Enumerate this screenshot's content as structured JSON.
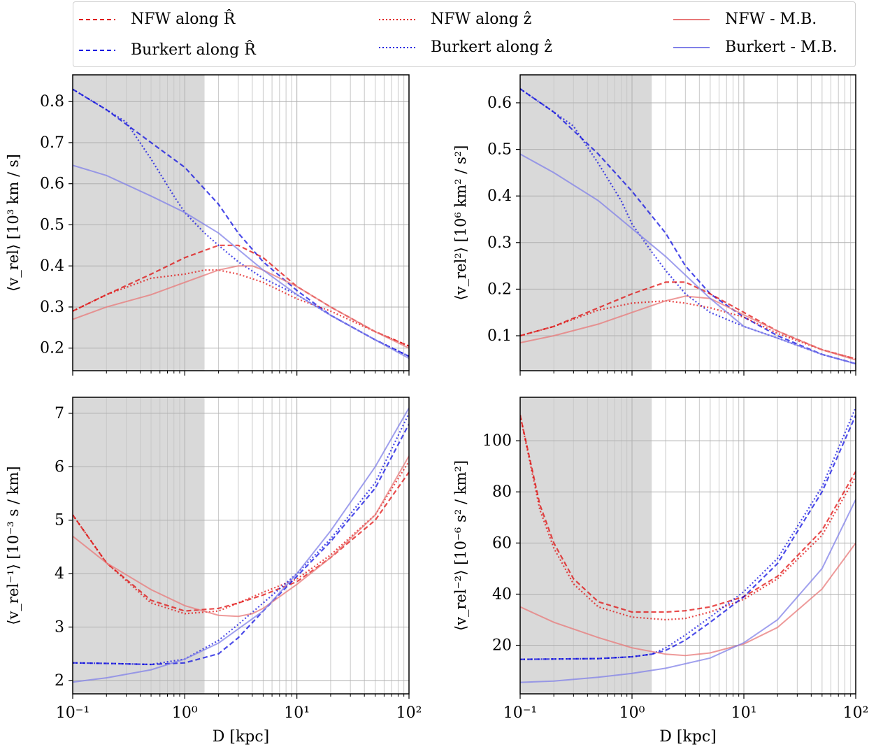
{
  "legend": {
    "items": [
      {
        "label": "NFW along R̂",
        "color": "#e00000",
        "style": "dashed",
        "opacity": 1
      },
      {
        "label": "Burkert along R̂",
        "color": "#0000e0",
        "style": "dashed",
        "opacity": 1
      },
      {
        "label": "NFW along ẑ",
        "color": "#e00000",
        "style": "dotted",
        "opacity": 1
      },
      {
        "label": "Burkert along ẑ",
        "color": "#0000e0",
        "style": "dotted",
        "opacity": 1
      },
      {
        "label": "NFW - M.B.",
        "color": "#e87878",
        "style": "solid",
        "opacity": 1
      },
      {
        "label": "Burkert - M.B.",
        "color": "#8080e8",
        "style": "solid",
        "opacity": 1
      }
    ]
  },
  "chart_data": [
    {
      "type": "line",
      "ylabel": "⟨v_rel⟩ [10³ km / s]",
      "xlabel": "",
      "xscale": "log",
      "xlim": [
        0.1,
        100
      ],
      "ylim": [
        0.145,
        0.865
      ],
      "yticks": [
        0.2,
        0.3,
        0.4,
        0.5,
        0.6,
        0.7,
        0.8
      ],
      "ytick_labels": [
        "0.2",
        "0.3",
        "0.4",
        "0.5",
        "0.6",
        "0.7",
        "0.8"
      ],
      "shaded_region": [
        0.1,
        1.5
      ],
      "grid": true,
      "series": [
        {
          "name": "Burkert along R̂",
          "color": "#0000e0",
          "style": "dashed",
          "x": [
            0.1,
            0.2,
            0.5,
            1,
            2,
            3,
            5,
            10,
            20,
            50,
            100
          ],
          "y": [
            0.83,
            0.78,
            0.7,
            0.64,
            0.55,
            0.48,
            0.41,
            0.34,
            0.28,
            0.22,
            0.18
          ]
        },
        {
          "name": "Burkert along ẑ",
          "color": "#0000e0",
          "style": "dotted",
          "x": [
            0.1,
            0.2,
            0.3,
            0.5,
            0.8,
            1,
            1.5,
            2,
            3,
            5,
            10,
            20,
            50,
            100
          ],
          "y": [
            0.83,
            0.78,
            0.75,
            0.66,
            0.57,
            0.53,
            0.48,
            0.45,
            0.41,
            0.37,
            0.33,
            0.28,
            0.22,
            0.18
          ]
        },
        {
          "name": "NFW along R̂",
          "color": "#e00000",
          "style": "dashed",
          "x": [
            0.1,
            0.2,
            0.5,
            1,
            2,
            3,
            5,
            10,
            20,
            50,
            100
          ],
          "y": [
            0.29,
            0.33,
            0.38,
            0.42,
            0.45,
            0.45,
            0.42,
            0.35,
            0.3,
            0.24,
            0.205
          ]
        },
        {
          "name": "NFW along ẑ",
          "color": "#e00000",
          "style": "dotted",
          "x": [
            0.1,
            0.2,
            0.5,
            1,
            1.5,
            2,
            3,
            5,
            10,
            20,
            50,
            100
          ],
          "y": [
            0.29,
            0.33,
            0.37,
            0.38,
            0.39,
            0.39,
            0.38,
            0.36,
            0.32,
            0.29,
            0.24,
            0.205
          ]
        },
        {
          "name": "NFW - M.B.",
          "color": "#e87878",
          "style": "solid",
          "x": [
            0.1,
            0.2,
            0.5,
            1,
            2,
            3,
            4,
            5,
            10,
            20,
            50,
            100
          ],
          "y": [
            0.27,
            0.3,
            0.33,
            0.36,
            0.39,
            0.4,
            0.4,
            0.39,
            0.35,
            0.3,
            0.24,
            0.2
          ]
        },
        {
          "name": "Burkert - M.B.",
          "color": "#8080e8",
          "style": "solid",
          "x": [
            0.1,
            0.2,
            0.5,
            1,
            2,
            5,
            10,
            20,
            50,
            100
          ],
          "y": [
            0.645,
            0.62,
            0.57,
            0.53,
            0.48,
            0.39,
            0.33,
            0.28,
            0.22,
            0.175
          ]
        }
      ]
    },
    {
      "type": "line",
      "ylabel": "⟨v_rel²⟩ [10⁶ km² / s²]",
      "xlabel": "",
      "xscale": "log",
      "xlim": [
        0.1,
        100
      ],
      "ylim": [
        0.025,
        0.66
      ],
      "yticks": [
        0.1,
        0.2,
        0.3,
        0.4,
        0.5,
        0.6
      ],
      "ytick_labels": [
        "0.1",
        "0.2",
        "0.3",
        "0.4",
        "0.5",
        "0.6"
      ],
      "shaded_region": [
        0.1,
        1.5
      ],
      "grid": true,
      "series": [
        {
          "name": "Burkert along R̂",
          "color": "#0000e0",
          "style": "dashed",
          "x": [
            0.1,
            0.2,
            0.5,
            1,
            2,
            3,
            5,
            10,
            20,
            50,
            100
          ],
          "y": [
            0.63,
            0.58,
            0.49,
            0.41,
            0.32,
            0.25,
            0.19,
            0.14,
            0.1,
            0.06,
            0.04
          ]
        },
        {
          "name": "Burkert along ẑ",
          "color": "#0000e0",
          "style": "dotted",
          "x": [
            0.1,
            0.2,
            0.3,
            0.5,
            0.8,
            1,
            1.5,
            2,
            3,
            5,
            10,
            20,
            50,
            100
          ],
          "y": [
            0.63,
            0.58,
            0.55,
            0.47,
            0.39,
            0.34,
            0.28,
            0.24,
            0.19,
            0.15,
            0.12,
            0.095,
            0.06,
            0.04
          ]
        },
        {
          "name": "NFW along R̂",
          "color": "#e00000",
          "style": "dashed",
          "x": [
            0.1,
            0.2,
            0.5,
            1,
            2,
            3,
            5,
            10,
            20,
            50,
            100
          ],
          "y": [
            0.1,
            0.12,
            0.16,
            0.19,
            0.215,
            0.215,
            0.19,
            0.15,
            0.11,
            0.07,
            0.05
          ]
        },
        {
          "name": "NFW along ẑ",
          "color": "#e00000",
          "style": "dotted",
          "x": [
            0.1,
            0.2,
            0.5,
            1,
            2,
            3,
            5,
            10,
            20,
            50,
            100
          ],
          "y": [
            0.1,
            0.12,
            0.155,
            0.17,
            0.175,
            0.17,
            0.16,
            0.14,
            0.105,
            0.07,
            0.05
          ]
        },
        {
          "name": "NFW - M.B.",
          "color": "#e87878",
          "style": "solid",
          "x": [
            0.1,
            0.2,
            0.5,
            1,
            2,
            3,
            5,
            10,
            20,
            50,
            100
          ],
          "y": [
            0.085,
            0.1,
            0.125,
            0.15,
            0.175,
            0.185,
            0.18,
            0.145,
            0.11,
            0.07,
            0.048
          ]
        },
        {
          "name": "Burkert - M.B.",
          "color": "#8080e8",
          "style": "solid",
          "x": [
            0.1,
            0.2,
            0.5,
            1,
            2,
            5,
            10,
            20,
            50,
            100
          ],
          "y": [
            0.49,
            0.45,
            0.39,
            0.33,
            0.27,
            0.18,
            0.12,
            0.095,
            0.06,
            0.04
          ]
        }
      ]
    },
    {
      "type": "line",
      "ylabel": "⟨v_rel⁻¹⟩ [10⁻³ s / km]",
      "xlabel": "D [kpc]",
      "xscale": "log",
      "xlim": [
        0.1,
        100
      ],
      "ylim": [
        1.75,
        7.3
      ],
      "yticks": [
        2,
        3,
        4,
        5,
        6,
        7
      ],
      "ytick_labels": [
        "2",
        "3",
        "4",
        "5",
        "6",
        "7"
      ],
      "xtick_labels": [
        "10⁻¹",
        "10⁰",
        "10¹",
        "10²"
      ],
      "shaded_region": [
        0.1,
        1.5
      ],
      "grid": true,
      "series": [
        {
          "name": "NFW along R̂",
          "color": "#e00000",
          "style": "dashed",
          "x": [
            0.1,
            0.2,
            0.5,
            1,
            2,
            3,
            5,
            10,
            20,
            50,
            100
          ],
          "y": [
            5.1,
            4.2,
            3.5,
            3.3,
            3.35,
            3.45,
            3.6,
            3.85,
            4.3,
            5.0,
            5.9
          ]
        },
        {
          "name": "NFW along ẑ",
          "color": "#e00000",
          "style": "dotted",
          "x": [
            0.1,
            0.2,
            0.5,
            1,
            2,
            3,
            5,
            10,
            20,
            50,
            100
          ],
          "y": [
            5.1,
            4.2,
            3.45,
            3.25,
            3.3,
            3.45,
            3.65,
            3.9,
            4.35,
            5.1,
            6.1
          ]
        },
        {
          "name": "Burkert along R̂",
          "color": "#0000e0",
          "style": "dashed",
          "x": [
            0.1,
            0.2,
            0.5,
            1,
            2,
            3,
            5,
            10,
            20,
            50,
            100
          ],
          "y": [
            2.33,
            2.32,
            2.3,
            2.33,
            2.5,
            2.8,
            3.3,
            3.95,
            4.6,
            5.6,
            6.8
          ]
        },
        {
          "name": "Burkert along ẑ",
          "color": "#0000e0",
          "style": "dotted",
          "x": [
            0.1,
            0.2,
            0.5,
            1,
            2,
            3,
            5,
            10,
            20,
            50,
            100
          ],
          "y": [
            2.33,
            2.32,
            2.3,
            2.4,
            2.75,
            3.05,
            3.45,
            4.0,
            4.65,
            5.7,
            7.0
          ]
        },
        {
          "name": "NFW - M.B.",
          "color": "#e87878",
          "style": "solid",
          "x": [
            0.1,
            0.2,
            0.5,
            1,
            2,
            3,
            4,
            5,
            10,
            20,
            50,
            100
          ],
          "y": [
            4.7,
            4.2,
            3.7,
            3.4,
            3.22,
            3.2,
            3.25,
            3.35,
            3.8,
            4.3,
            5.1,
            6.2
          ]
        },
        {
          "name": "Burkert - M.B.",
          "color": "#8080e8",
          "style": "solid",
          "x": [
            0.1,
            0.2,
            0.5,
            1,
            2,
            5,
            10,
            20,
            50,
            100
          ],
          "y": [
            1.97,
            2.05,
            2.2,
            2.4,
            2.7,
            3.3,
            4.0,
            4.8,
            6.0,
            7.1
          ]
        }
      ]
    },
    {
      "type": "line",
      "ylabel": "⟨v_rel⁻²⟩ [10⁻⁶ s² / km²]",
      "xlabel": "D [kpc]",
      "xscale": "log",
      "xlim": [
        0.1,
        100
      ],
      "ylim": [
        1,
        117
      ],
      "yticks": [
        20,
        40,
        60,
        80,
        100
      ],
      "ytick_labels": [
        "20",
        "40",
        "60",
        "80",
        "100"
      ],
      "xtick_labels": [
        "10⁻¹",
        "10⁰",
        "10¹",
        "10²"
      ],
      "shaded_region": [
        0.1,
        1.5
      ],
      "grid": true,
      "series": [
        {
          "name": "NFW along R̂",
          "color": "#e00000",
          "style": "dashed",
          "x": [
            0.1,
            0.15,
            0.2,
            0.3,
            0.5,
            1,
            2,
            3,
            5,
            10,
            20,
            50,
            100
          ],
          "y": [
            110,
            75,
            60,
            46,
            37,
            33,
            33,
            33.5,
            35,
            39,
            47,
            65,
            88
          ]
        },
        {
          "name": "NFW along ẑ",
          "color": "#e00000",
          "style": "dotted",
          "x": [
            0.1,
            0.15,
            0.2,
            0.3,
            0.5,
            1,
            2,
            3,
            5,
            10,
            20,
            50,
            100
          ],
          "y": [
            110,
            73,
            58,
            44,
            35,
            31,
            30,
            30.5,
            33,
            38,
            46,
            63,
            86
          ]
        },
        {
          "name": "Burkert along R̂",
          "color": "#0000e0",
          "style": "dashed",
          "x": [
            0.1,
            0.5,
            1,
            1.5,
            2,
            3,
            5,
            10,
            20,
            50,
            100
          ],
          "y": [
            14.5,
            14.8,
            15.5,
            16.5,
            18,
            22,
            29,
            39,
            52,
            80,
            110
          ]
        },
        {
          "name": "Burkert along ẑ",
          "color": "#0000e0",
          "style": "dotted",
          "x": [
            0.1,
            0.5,
            1,
            1.5,
            2,
            3,
            5,
            10,
            20,
            50,
            100
          ],
          "y": [
            14.5,
            14.8,
            15.5,
            16.5,
            19,
            24,
            31,
            41,
            54,
            82,
            113
          ]
        },
        {
          "name": "NFW - M.B.",
          "color": "#e87878",
          "style": "solid",
          "x": [
            0.1,
            0.2,
            0.5,
            1,
            2,
            3,
            5,
            10,
            20,
            50,
            100
          ],
          "y": [
            35,
            29,
            23,
            19,
            16.5,
            16,
            17,
            20.5,
            27,
            42,
            60
          ]
        },
        {
          "name": "Burkert - M.B.",
          "color": "#8080e8",
          "style": "solid",
          "x": [
            0.1,
            0.2,
            0.5,
            1,
            2,
            5,
            10,
            20,
            50,
            100
          ],
          "y": [
            5.5,
            6,
            7.5,
            9,
            11,
            15,
            21,
            30,
            50,
            77
          ]
        }
      ]
    }
  ]
}
